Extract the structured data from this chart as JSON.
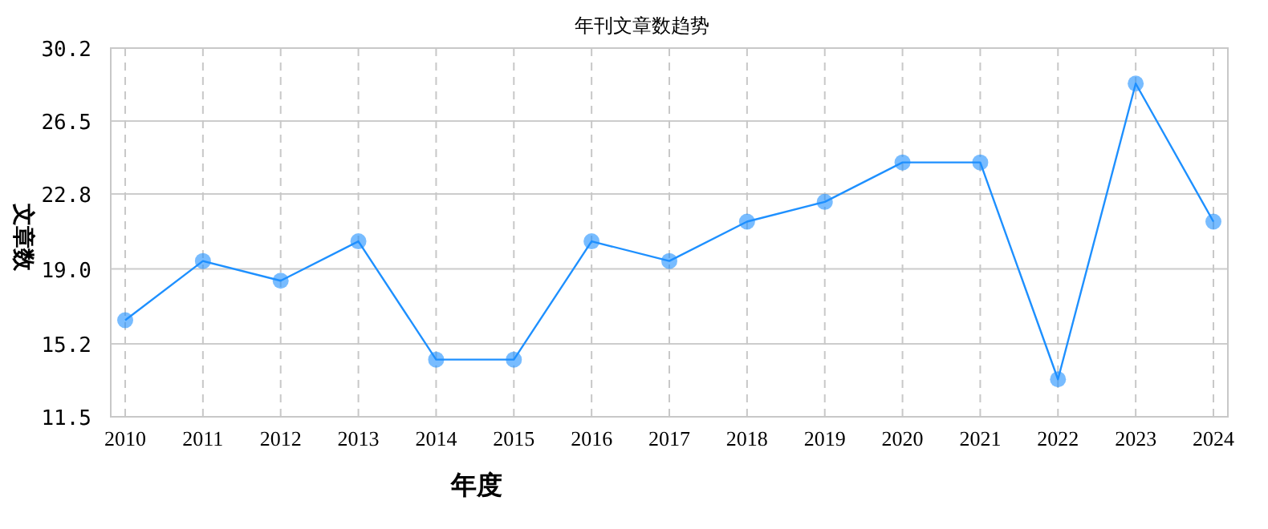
{
  "chart_data": {
    "type": "line",
    "title": "年刊文章数趋势",
    "xlabel": "年度",
    "ylabel": "文章数",
    "categories": [
      "2010",
      "2011",
      "2012",
      "2013",
      "2014",
      "2015",
      "2016",
      "2017",
      "2018",
      "2019",
      "2020",
      "2021",
      "2022",
      "2023",
      "2024"
    ],
    "series": [
      {
        "color": "#1e90ff",
        "values": [
          16.4,
          19.4,
          18.4,
          20.4,
          14.4,
          14.4,
          20.4,
          19.4,
          21.4,
          22.4,
          24.4,
          24.4,
          13.4,
          28.4,
          21.4
        ]
      }
    ],
    "ylim": [
      11.5,
      30.2
    ],
    "yticks": [
      11.5,
      15.2,
      {
        "value": 19,
        "label": "19.0"
      },
      22.8,
      26.5,
      30.2
    ],
    "grid": true,
    "marker": "circle",
    "line_style": "solid"
  }
}
